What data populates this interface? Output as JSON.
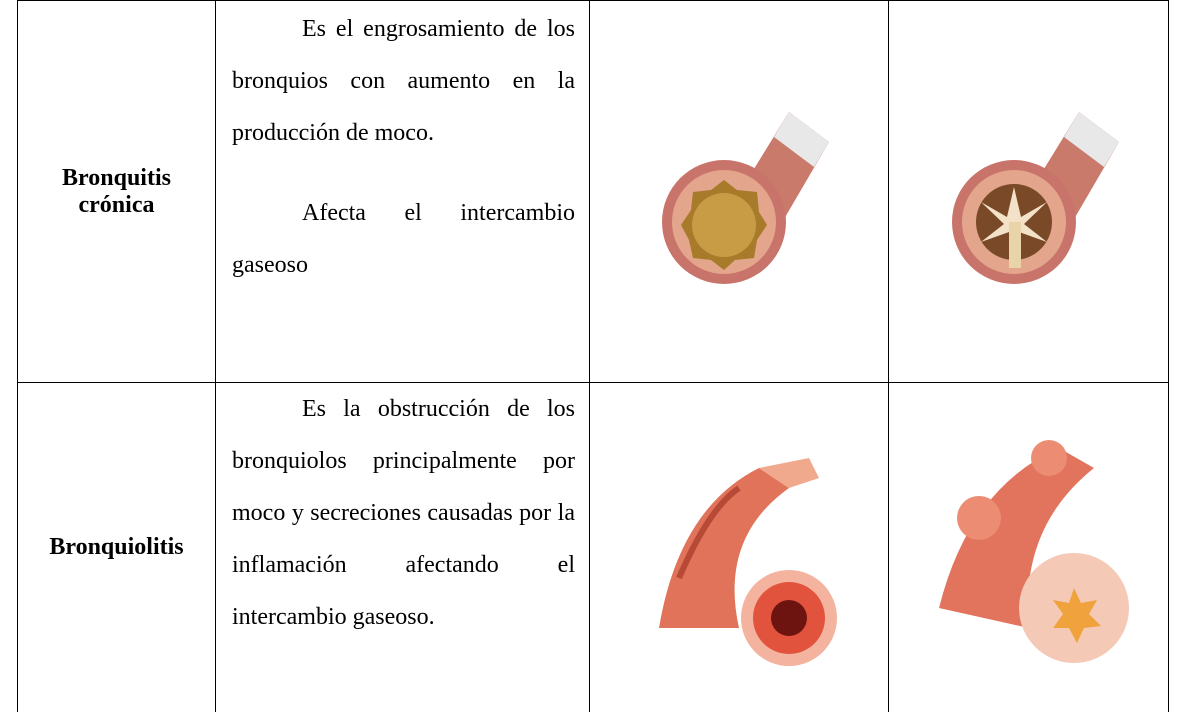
{
  "table": {
    "rows": [
      {
        "term": "Bronquitis crónica",
        "description": [
          "Es el engrosamiento de los bronquios con aumento en la producción de moco.",
          "Afecta el intercambio gaseoso"
        ]
      },
      {
        "term": "Bronquiolitis",
        "description": [
          "Es la obstrucción de los bronquiolos principalmente por moco y secreciones causadas por la inflamación afectando el intercambio gaseoso."
        ]
      }
    ]
  }
}
